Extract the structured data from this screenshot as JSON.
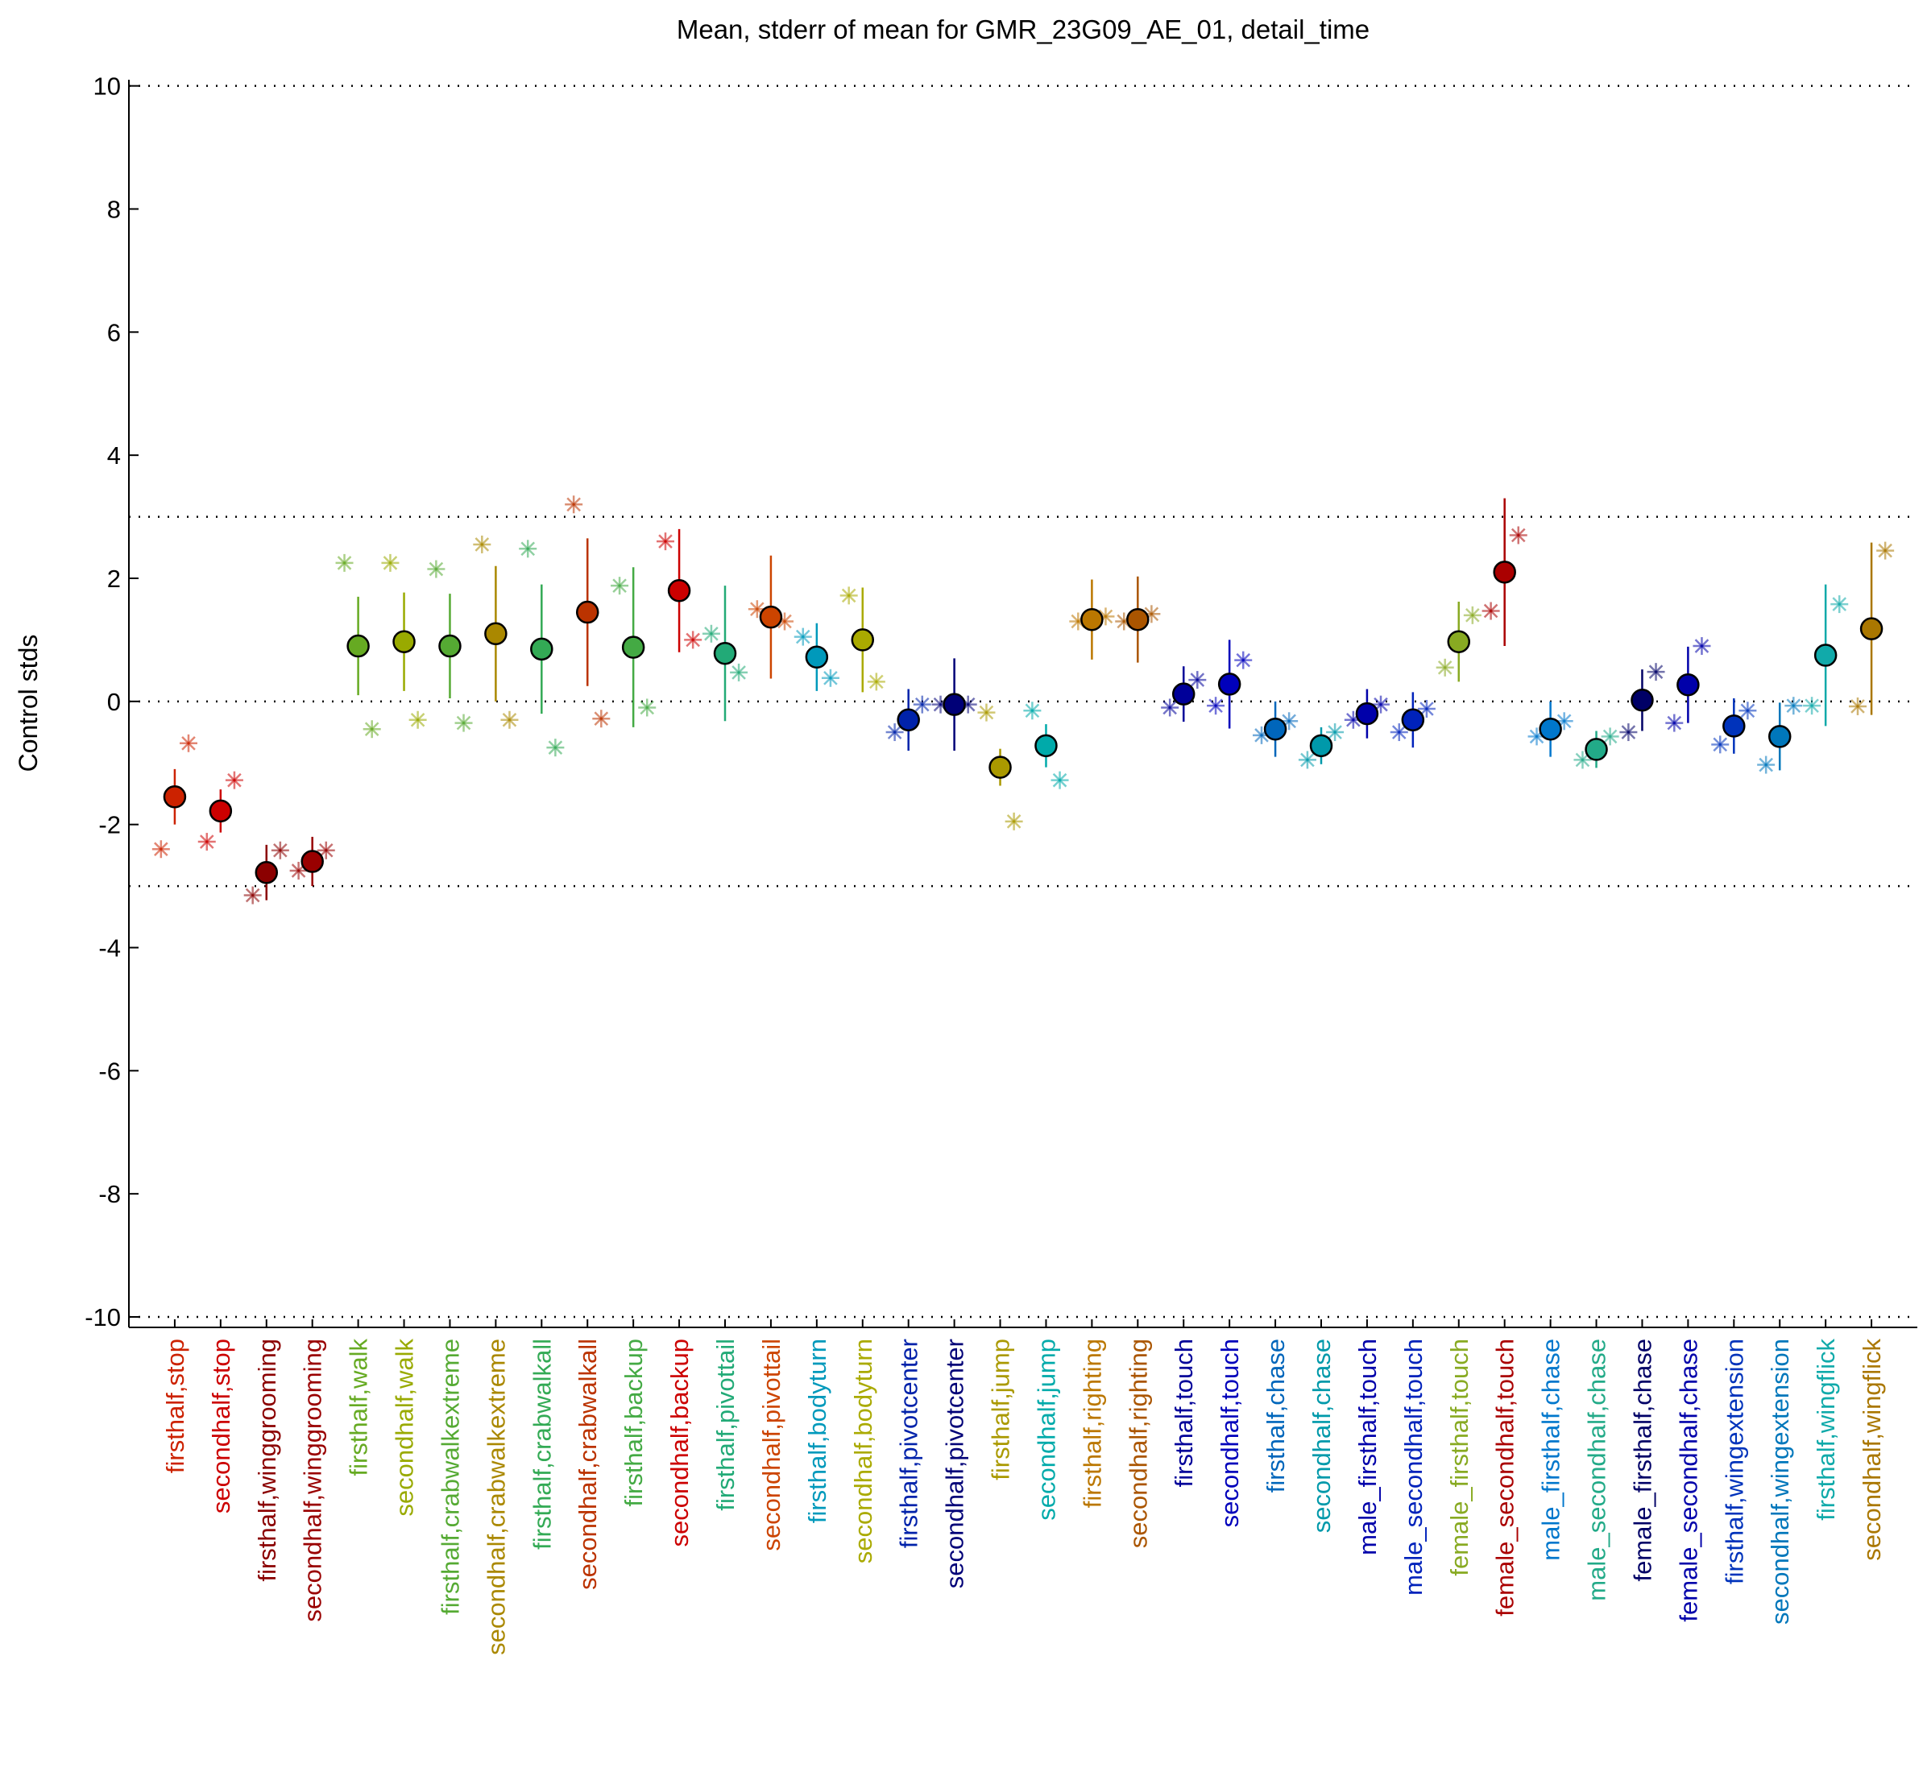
{
  "chart_data": {
    "type": "errorbar",
    "title": "Mean, stderr of mean for GMR_23G09_AE_01, detail_time",
    "y_label": "Control stds",
    "categories": [
      "firsthalf,stop",
      "secondhalf,stop",
      "firsthalf,winggrooming",
      "secondhalf,winggrooming",
      "firsthalf,walk",
      "secondhalf,walk",
      "firsthalf,crabwalkextreme",
      "secondhalf,crabwalkextreme",
      "firsthalf,crabwalkall",
      "secondhalf,crabwalkall",
      "firsthalf,backup",
      "secondhalf,backup",
      "firsthalf,pivottail",
      "secondhalf,pivottail",
      "firsthalf,bodyturn",
      "secondhalf,bodyturn",
      "firsthalf,pivotcenter",
      "secondhalf,pivotcenter",
      "firsthalf,jump",
      "secondhalf,jump",
      "firsthalf,righting",
      "secondhalf,righting",
      "firsthalf,touch",
      "secondhalf,touch",
      "firsthalf,chase",
      "secondhalf,chase",
      "male_firsthalf,touch",
      "male_secondhalf,touch",
      "female_firsthalf,touch",
      "female_secondhalf,touch",
      "male_firsthalf,chase",
      "male_secondhalf,chase",
      "female_firsthalf,chase",
      "female_secondhalf,chase",
      "firsthalf,wingextension",
      "secondhalf,wingextension",
      "firsthalf,wingflick",
      "secondhalf,wingflick"
    ],
    "colors": [
      "#cc2200",
      "#cc0000",
      "#8b0000",
      "#990000",
      "#66aa22",
      "#99aa00",
      "#55aa33",
      "#aa8800",
      "#33aa55",
      "#bb3300",
      "#44aa44",
      "#cc0000",
      "#22aa77",
      "#cc4400",
      "#0099bb",
      "#aaaa00",
      "#0022aa",
      "#000077",
      "#aa9900",
      "#00aaaa",
      "#bb7700",
      "#aa5500",
      "#000099",
      "#0000bb",
      "#0066bb",
      "#0099aa",
      "#0000aa",
      "#0022bb",
      "#88aa22",
      "#aa0000",
      "#0077cc",
      "#22aa88",
      "#000066",
      "#0000aa",
      "#0033bb",
      "#0077bb",
      "#11aaaa",
      "#aa7700"
    ],
    "values": [
      -1.55,
      -1.78,
      -2.78,
      -2.6,
      0.9,
      0.97,
      0.9,
      1.1,
      0.85,
      1.45,
      0.88,
      1.8,
      0.78,
      1.37,
      0.72,
      1.0,
      -0.3,
      -0.05,
      -1.07,
      -0.72,
      1.33,
      1.33,
      0.12,
      0.28,
      -0.45,
      -0.72,
      -0.2,
      -0.3,
      0.97,
      2.1,
      -0.45,
      -0.78,
      0.02,
      0.27,
      -0.4,
      -0.57,
      0.75,
      1.18
    ],
    "errors": [
      0.45,
      0.35,
      0.45,
      0.4,
      0.8,
      0.8,
      0.85,
      1.1,
      1.05,
      1.2,
      1.3,
      1.0,
      1.1,
      1.0,
      0.55,
      0.85,
      0.5,
      0.75,
      0.3,
      0.35,
      0.65,
      0.7,
      0.45,
      0.72,
      0.45,
      0.3,
      0.4,
      0.45,
      0.65,
      1.2,
      0.45,
      0.3,
      0.5,
      0.62,
      0.45,
      0.55,
      1.15,
      1.4
    ],
    "left_star": [
      -2.4,
      -2.28,
      -3.15,
      -2.75,
      2.25,
      2.25,
      2.15,
      2.55,
      2.48,
      3.2,
      1.88,
      2.6,
      1.1,
      1.5,
      1.05,
      1.72,
      -0.5,
      -0.05,
      -0.18,
      -0.15,
      1.3,
      1.3,
      -0.1,
      -0.07,
      -0.55,
      -0.95,
      -0.3,
      -0.5,
      0.55,
      1.47,
      -0.57,
      -0.95,
      -0.5,
      -0.35,
      -0.7,
      -1.03,
      -0.07,
      -0.08
    ],
    "right_star": [
      -0.68,
      -1.28,
      -2.42,
      -2.42,
      -0.45,
      -0.3,
      -0.35,
      -0.3,
      -0.75,
      -0.28,
      -0.1,
      1.0,
      0.47,
      1.3,
      0.38,
      0.32,
      -0.05,
      -0.05,
      -1.95,
      -1.28,
      1.38,
      1.42,
      0.35,
      0.67,
      -0.32,
      -0.5,
      -0.05,
      -0.12,
      1.4,
      2.7,
      -0.32,
      -0.57,
      0.48,
      0.9,
      -0.15,
      -0.07,
      1.58,
      2.45
    ],
    "ylim": [
      -10.17,
      10.1
    ],
    "yticks": [
      -10,
      -8,
      -6,
      -4,
      -2,
      0,
      2,
      4,
      6,
      8,
      10
    ],
    "reference_lines": [
      -10,
      -3,
      0,
      3,
      10
    ]
  }
}
